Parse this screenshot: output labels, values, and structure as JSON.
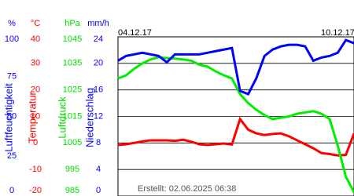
{
  "chart_data": {
    "type": "line",
    "date_labels": [
      "04.12.17",
      "10.12.17"
    ],
    "footer": "Erstellt: 02.06.2025 06:38",
    "axes": [
      {
        "unit": "%",
        "title": "Luftfeuchtigkeit",
        "color": "#0000ff",
        "lim": [
          0,
          100
        ],
        "ticks": [
          0,
          25,
          50,
          75,
          100
        ]
      },
      {
        "unit": "°C",
        "title": "Temperatur",
        "color": "#ff0000",
        "lim": [
          -20,
          40
        ],
        "ticks": [
          -20,
          -10,
          0,
          10,
          20,
          30,
          40
        ]
      },
      {
        "unit": "hPa",
        "title": "Luftdruck",
        "color": "#00dd00",
        "lim": [
          985,
          1045
        ],
        "ticks": [
          985,
          995,
          1005,
          1015,
          1025,
          1035,
          1045
        ]
      },
      {
        "unit": "mm/h",
        "title": "Niederschlag",
        "color": "#0000ff",
        "lim": [
          0,
          24
        ],
        "ticks": [
          0,
          4,
          8,
          12,
          16,
          20,
          24
        ]
      }
    ],
    "series": [
      {
        "color": "#ff0000",
        "axis": 1,
        "values": [
          -0.8,
          -0.5,
          0,
          0.6,
          1,
          1,
          1,
          0.8,
          1.2,
          0.5,
          -0.5,
          -0.8,
          -0.5,
          -0.2,
          -0.6,
          9,
          5,
          3.6,
          3,
          3.4,
          3.6,
          2.5,
          1,
          -0.5,
          -2,
          -3.8,
          -4.2,
          -4.7,
          -4.5,
          3.6
        ]
      },
      {
        "color": "#00ee00",
        "axis": 2,
        "values": [
          1029.3,
          1030.5,
          1033,
          1035,
          1036.5,
          1037.3,
          1037,
          1036.8,
          1036.5,
          1036,
          1034.5,
          1033.8,
          1032,
          1030.5,
          1029.3,
          1023.4,
          1020,
          1017.5,
          1015.5,
          1014,
          1014.5,
          1015,
          1016,
          1016.5,
          1017,
          1016,
          1014,
          1004,
          992.3,
          986.4
        ]
      },
      {
        "color": "#0000ff",
        "axis": 0,
        "values": [
          85,
          88,
          89,
          90,
          89,
          88,
          84,
          89,
          89,
          89,
          89,
          90,
          91,
          92,
          93,
          66,
          64,
          74,
          88,
          92,
          94,
          95,
          95,
          94,
          85,
          87,
          88,
          90,
          98,
          96
        ]
      }
    ]
  }
}
